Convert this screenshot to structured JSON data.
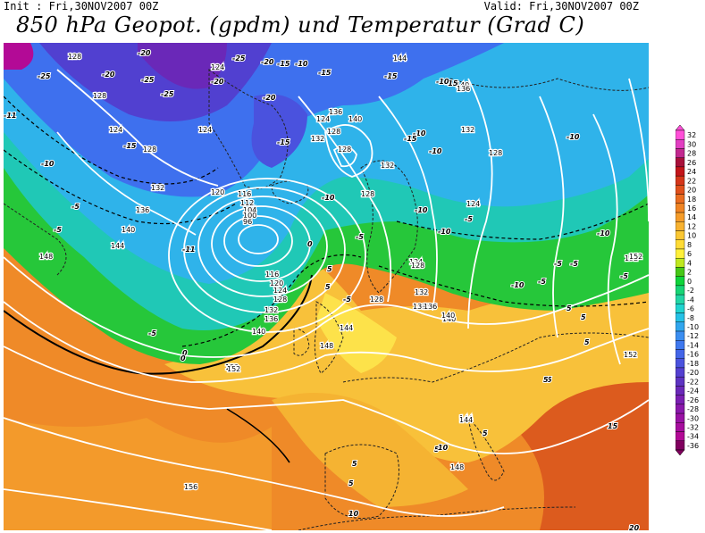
{
  "header": {
    "init": "Init : Fri,30NOV2007 00Z",
    "valid": "Valid: Fri,30NOV2007 00Z",
    "title": "850 hPa Geopot. (gpdm) und Temperatur (Grad C)"
  },
  "legend": {
    "labels": [
      "32",
      "30",
      "28",
      "26",
      "24",
      "22",
      "20",
      "18",
      "16",
      "14",
      "12",
      "10",
      "8",
      "6",
      "4",
      "2",
      "0",
      "-2",
      "-4",
      "-6",
      "-8",
      "-10",
      "-12",
      "-14",
      "-16",
      "-18",
      "-20",
      "-22",
      "-24",
      "-26",
      "-28",
      "-30",
      "-32",
      "-34",
      "-36"
    ],
    "colors": [
      "#ff4fd8",
      "#e23ec2",
      "#c2288f",
      "#a8103a",
      "#c3151a",
      "#d5361a",
      "#e0501c",
      "#ea6c20",
      "#f08424",
      "#f59c2a",
      "#f8b230",
      "#fbc733",
      "#ffdb35",
      "#fff03a",
      "#bfe81f",
      "#46c816",
      "#0ed43a",
      "#17d575",
      "#22d6a5",
      "#20d4cf",
      "#25c1e6",
      "#31a6ee",
      "#3b8ef1",
      "#3f78ef",
      "#4365e8",
      "#4a52de",
      "#5440d1",
      "#5d33c2",
      "#6a28b8",
      "#7a1fb2",
      "#8a18ab",
      "#9912a4",
      "#a60e9e",
      "#b30a96",
      "#80005e"
    ]
  },
  "contours": {
    "geopotential_labels": [
      {
        "t": "128"
      },
      {
        "t": "128"
      },
      {
        "t": "124"
      },
      {
        "t": "124"
      },
      {
        "t": "124"
      },
      {
        "t": "128"
      },
      {
        "t": "132"
      },
      {
        "t": "136"
      },
      {
        "t": "140"
      },
      {
        "t": "144"
      },
      {
        "t": "148"
      },
      {
        "t": "152"
      },
      {
        "t": "156"
      },
      {
        "t": "120"
      },
      {
        "t": "116"
      },
      {
        "t": "112"
      },
      {
        "t": "104"
      },
      {
        "t": "100"
      },
      {
        "t": "96"
      },
      {
        "t": "116"
      },
      {
        "t": "120"
      },
      {
        "t": "124"
      },
      {
        "t": "128"
      },
      {
        "t": "132"
      },
      {
        "t": "136"
      },
      {
        "t": "140"
      },
      {
        "t": "144"
      },
      {
        "t": "148"
      },
      {
        "t": "152"
      },
      {
        "t": "128"
      },
      {
        "t": "132"
      },
      {
        "t": "128"
      },
      {
        "t": "124"
      },
      {
        "t": "136"
      },
      {
        "t": "140"
      },
      {
        "t": "144"
      },
      {
        "t": "140"
      },
      {
        "t": "136"
      },
      {
        "t": "132"
      },
      {
        "t": "128"
      },
      {
        "t": "124"
      },
      {
        "t": "128"
      },
      {
        "t": "136"
      },
      {
        "t": "140"
      },
      {
        "t": "144"
      },
      {
        "t": "148"
      },
      {
        "t": "152"
      },
      {
        "t": "152"
      },
      {
        "t": "152"
      },
      {
        "t": "124"
      },
      {
        "t": "132"
      },
      {
        "t": "136"
      },
      {
        "t": "140"
      },
      {
        "t": "128"
      },
      {
        "t": "128"
      },
      {
        "t": "136"
      },
      {
        "t": "132"
      },
      {
        "t": "144"
      }
    ],
    "temperature_labels": [
      {
        "t": "-11"
      },
      {
        "t": "-25"
      },
      {
        "t": "-20"
      },
      {
        "t": "-20"
      },
      {
        "t": "-25"
      },
      {
        "t": "-25"
      },
      {
        "t": "-20"
      },
      {
        "t": "-25"
      },
      {
        "t": "-20"
      },
      {
        "t": "-15"
      },
      {
        "t": "-10"
      },
      {
        "t": "-15"
      },
      {
        "t": "-15"
      },
      {
        "t": "-20"
      },
      {
        "t": "-15"
      },
      {
        "t": "-10"
      },
      {
        "t": "-5"
      },
      {
        "t": "-11"
      },
      {
        "t": "-5"
      },
      {
        "t": "0"
      },
      {
        "t": "-5"
      },
      {
        "t": "0"
      },
      {
        "t": "-10"
      },
      {
        "t": "-15"
      },
      {
        "t": "-10"
      },
      {
        "t": "-15"
      },
      {
        "t": "-10"
      },
      {
        "t": "-5"
      },
      {
        "t": "-10"
      },
      {
        "t": "-10"
      },
      {
        "t": "-15"
      },
      {
        "t": "-10"
      },
      {
        "t": "-10"
      },
      {
        "t": "-5"
      },
      {
        "t": "-5"
      },
      {
        "t": "-10"
      },
      {
        "t": "-5"
      },
      {
        "t": "0"
      },
      {
        "t": "-5"
      },
      {
        "t": "5"
      },
      {
        "t": "5"
      },
      {
        "t": "5"
      },
      {
        "t": "5"
      },
      {
        "t": "5"
      },
      {
        "t": "5"
      },
      {
        "t": "5"
      },
      {
        "t": "10"
      },
      {
        "t": "5"
      },
      {
        "t": "5"
      },
      {
        "t": "5"
      },
      {
        "t": "10"
      },
      {
        "t": "15"
      },
      {
        "t": "20"
      },
      {
        "t": "5"
      },
      {
        "t": "-5"
      },
      {
        "t": "-10"
      },
      {
        "t": "-5"
      }
    ]
  }
}
